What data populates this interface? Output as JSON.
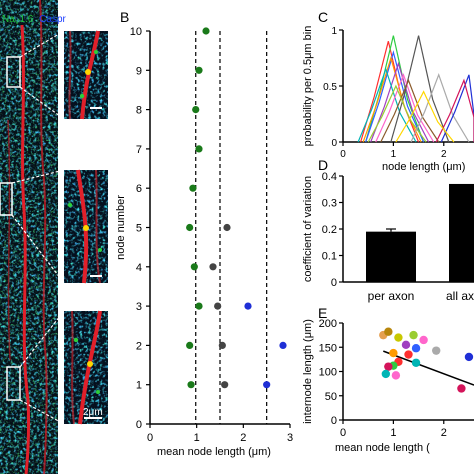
{
  "panel_a": {
    "stain_label": "Na",
    "stain_label_sub": "V",
    "stain_label_rest": "1.6",
    "stain_label_second": "Caspr",
    "stain_color_1": "#1fbf3a",
    "stain_color_2": "#1b3cff",
    "scale_bar": "2μm"
  },
  "panel_labels": {
    "b": "B",
    "c": "C",
    "d": "D",
    "e": "E"
  },
  "chart_data": [
    {
      "id": "B",
      "type": "scatter",
      "title": "",
      "xlabel": "mean node length (μm)",
      "ylabel": "node number",
      "xlim": [
        0,
        3
      ],
      "ylim": [
        0,
        10
      ],
      "xticks": [
        0,
        1,
        2,
        3
      ],
      "yticks": [
        0,
        1,
        2,
        3,
        4,
        5,
        6,
        7,
        8,
        9,
        10
      ],
      "vlines": [
        0.98,
        1.5,
        2.5
      ],
      "series": [
        {
          "color": "#1a7a1a",
          "points": [
            [
              1.2,
              10
            ],
            [
              1.05,
              9
            ],
            [
              0.98,
              8
            ],
            [
              1.05,
              7
            ],
            [
              0.92,
              6
            ],
            [
              0.85,
              5
            ],
            [
              0.95,
              4
            ],
            [
              1.05,
              3
            ],
            [
              0.85,
              2
            ],
            [
              0.88,
              1
            ]
          ]
        },
        {
          "color": "#444444",
          "points": [
            [
              1.65,
              5
            ],
            [
              1.35,
              4
            ],
            [
              1.45,
              3
            ],
            [
              1.55,
              2
            ],
            [
              1.6,
              1
            ]
          ]
        },
        {
          "color": "#1f2fd6",
          "points": [
            [
              2.1,
              3
            ],
            [
              2.85,
              2
            ],
            [
              2.5,
              1
            ]
          ]
        }
      ]
    },
    {
      "id": "C",
      "type": "line",
      "xlabel": "node length (μm)",
      "ylabel": "probability per 0.5μm bin",
      "xlim": [
        0,
        2.6
      ],
      "ylim": [
        0,
        1
      ],
      "xticks": [
        0,
        1,
        2
      ],
      "yticks": [
        0,
        0.5,
        1
      ],
      "peaks": [
        {
          "color": "#ff2e2e",
          "peak": [
            0.9,
            0.9
          ]
        },
        {
          "color": "#2ecc40",
          "peak": [
            1.0,
            0.95
          ]
        },
        {
          "color": "#3060ff",
          "peak": [
            1.0,
            0.8
          ]
        },
        {
          "color": "#ff9a00",
          "peak": [
            0.95,
            0.75
          ]
        },
        {
          "color": "#a040c0",
          "peak": [
            1.1,
            0.7
          ]
        },
        {
          "color": "#00b5b5",
          "peak": [
            0.85,
            0.65
          ]
        },
        {
          "color": "#555555",
          "peak": [
            1.5,
            0.95
          ]
        },
        {
          "color": "#ff66cc",
          "peak": [
            1.2,
            0.6
          ]
        },
        {
          "color": "#8b5a2b",
          "peak": [
            1.3,
            0.55
          ]
        },
        {
          "color": "#9acd32",
          "peak": [
            1.05,
            0.5
          ]
        },
        {
          "color": "#aaaaaa",
          "peak": [
            1.9,
            0.6
          ]
        },
        {
          "color": "#1f2fd6",
          "peak": [
            2.5,
            0.6
          ]
        },
        {
          "color": "#d4145a",
          "peak": [
            2.4,
            0.55
          ]
        },
        {
          "color": "#ffd700",
          "peak": [
            1.6,
            0.45
          ]
        }
      ]
    },
    {
      "id": "D",
      "type": "bar",
      "categories": [
        "per axon",
        "all ax"
      ],
      "values": [
        0.19,
        0.37
      ],
      "errors": [
        0.01,
        0
      ],
      "ylabel": "coefficient of variation",
      "ylim": [
        0,
        0.4
      ],
      "yticks": [
        0,
        0.1,
        0.2,
        0.3,
        0.4
      ]
    },
    {
      "id": "E",
      "type": "scatter",
      "xlabel": "mean node length (",
      "ylabel": "internode length (μm)",
      "xlim": [
        0,
        2.6
      ],
      "ylim": [
        0,
        200
      ],
      "xticks": [
        0,
        1,
        2
      ],
      "yticks": [
        0,
        50,
        100,
        150,
        200
      ],
      "points": [
        {
          "x": 0.8,
          "y": 175,
          "color": "#e6a050"
        },
        {
          "x": 0.9,
          "y": 182,
          "color": "#b8860b"
        },
        {
          "x": 1.1,
          "y": 170,
          "color": "#c8c800"
        },
        {
          "x": 1.4,
          "y": 175,
          "color": "#9acd32"
        },
        {
          "x": 1.6,
          "y": 165,
          "color": "#ff66cc"
        },
        {
          "x": 1.25,
          "y": 155,
          "color": "#a040c0"
        },
        {
          "x": 1.45,
          "y": 148,
          "color": "#3060ff"
        },
        {
          "x": 1.85,
          "y": 143,
          "color": "#aaaaaa"
        },
        {
          "x": 1.0,
          "y": 138,
          "color": "#ff9a00"
        },
        {
          "x": 1.3,
          "y": 135,
          "color": "#ff2e2e"
        },
        {
          "x": 1.1,
          "y": 120,
          "color": "#ff2e2e"
        },
        {
          "x": 1.0,
          "y": 112,
          "color": "#2ecc40"
        },
        {
          "x": 1.45,
          "y": 118,
          "color": "#00b5b5"
        },
        {
          "x": 0.9,
          "y": 110,
          "color": "#d4145a"
        },
        {
          "x": 0.85,
          "y": 95,
          "color": "#00b5b5"
        },
        {
          "x": 1.05,
          "y": 92,
          "color": "#ff66cc"
        },
        {
          "x": 2.5,
          "y": 130,
          "color": "#1f2fd6"
        },
        {
          "x": 2.35,
          "y": 65,
          "color": "#d4145a"
        }
      ],
      "fit_line": [
        [
          0.8,
          142
        ],
        [
          2.6,
          72
        ]
      ]
    }
  ]
}
